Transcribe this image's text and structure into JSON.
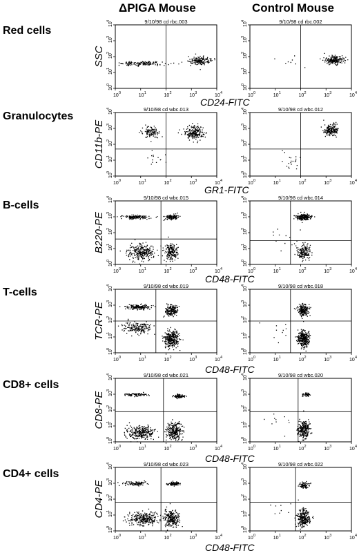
{
  "columns": [
    "ΔPIGA Mouse",
    "Control Mouse"
  ],
  "panels": [
    {
      "row_label": "Red cells",
      "ylabel": "SSC",
      "xlabel": "CD24-FITC",
      "plots": [
        {
          "file": "9/10/98 cd rbc.003",
          "quad_x": 2.0,
          "quad_y": null,
          "clusters": [
            [
              0.9,
              1.6,
              0.75,
              0.12,
              140
            ],
            [
              3.3,
              1.75,
              0.35,
              0.22,
              170
            ],
            [
              2.3,
              1.65,
              0.1,
              0.1,
              2
            ]
          ]
        },
        {
          "file": "9/10/98 cd rbc.002",
          "quad_x": 2.0,
          "quad_y": null,
          "clusters": [
            [
              3.3,
              1.8,
              0.3,
              0.22,
              190
            ],
            [
              1.6,
              1.8,
              0.4,
              0.5,
              8
            ]
          ]
        }
      ]
    },
    {
      "row_label": "Granulocytes",
      "ylabel": "CD11b-PE",
      "xlabel": "GR1-FITC",
      "plots": [
        {
          "file": "9/10/98 cd wbc.013",
          "quad_x": 2.0,
          "quad_y": 1.7,
          "clusters": [
            [
              1.4,
              2.8,
              0.25,
              0.3,
              110
            ],
            [
              3.1,
              2.75,
              0.3,
              0.35,
              200
            ],
            [
              1.6,
              1.1,
              0.35,
              0.4,
              14
            ]
          ]
        },
        {
          "file": "9/10/98 cd wbc.012",
          "quad_x": 2.0,
          "quad_y": 1.7,
          "clusters": [
            [
              3.2,
              2.9,
              0.25,
              0.3,
              170
            ],
            [
              1.6,
              1.0,
              0.35,
              0.45,
              20
            ]
          ]
        }
      ]
    },
    {
      "row_label": "B-cells",
      "ylabel": "B220-PE",
      "xlabel": "CD48-FITC",
      "plots": [
        {
          "file": "9/10/98 cd wbc.015",
          "quad_x": 1.8,
          "quad_y": 1.6,
          "clusters": [
            [
              0.8,
              3.0,
              0.45,
              0.1,
              140
            ],
            [
              2.2,
              3.0,
              0.2,
              0.12,
              120
            ],
            [
              1.0,
              0.8,
              0.45,
              0.45,
              260
            ],
            [
              2.2,
              0.8,
              0.2,
              0.4,
              190
            ]
          ]
        },
        {
          "file": "9/10/98 cd wbc.014",
          "quad_x": 1.6,
          "quad_y": 1.5,
          "clusters": [
            [
              2.1,
              3.0,
              0.25,
              0.15,
              200
            ],
            [
              2.1,
              0.8,
              0.22,
              0.4,
              170
            ],
            [
              1.3,
              1.5,
              0.6,
              0.6,
              14
            ]
          ]
        }
      ]
    },
    {
      "row_label": "T-cells",
      "ylabel": "TCR-PE",
      "xlabel": "CD48-FITC",
      "plots": [
        {
          "file": "9/10/98 cd wbc.019",
          "quad_x": 1.6,
          "quad_y": 2.0,
          "clusters": [
            [
              0.9,
              2.9,
              0.4,
              0.12,
              150
            ],
            [
              0.9,
              1.6,
              0.5,
              0.3,
              180
            ],
            [
              2.2,
              2.7,
              0.2,
              0.3,
              190
            ],
            [
              2.2,
              0.9,
              0.25,
              0.45,
              280
            ]
          ]
        },
        {
          "file": "9/10/98 cd wbc.018",
          "quad_x": 1.6,
          "quad_y": 2.0,
          "clusters": [
            [
              2.1,
              2.7,
              0.18,
              0.3,
              200
            ],
            [
              2.1,
              0.9,
              0.2,
              0.4,
              290
            ],
            [
              1.2,
              1.5,
              0.6,
              0.7,
              10
            ]
          ]
        }
      ]
    },
    {
      "row_label": "CD8+ cells",
      "ylabel": "CD8-PE",
      "xlabel": "CD48-FITC",
      "plots": [
        {
          "file": "9/10/98 cd wbc.021",
          "quad_x": 1.9,
          "quad_y": 1.9,
          "clusters": [
            [
              0.8,
              3.0,
              0.4,
              0.1,
              80
            ],
            [
              2.5,
              2.9,
              0.2,
              0.1,
              80
            ],
            [
              1.0,
              0.6,
              0.5,
              0.35,
              280
            ],
            [
              2.3,
              0.7,
              0.25,
              0.45,
              250
            ]
          ]
        },
        {
          "file": "9/10/98 cd wbc.020",
          "quad_x": 1.9,
          "quad_y": 1.9,
          "clusters": [
            [
              2.2,
              3.0,
              0.15,
              0.1,
              50
            ],
            [
              2.1,
              0.8,
              0.2,
              0.45,
              240
            ],
            [
              1.3,
              1.4,
              0.6,
              0.6,
              12
            ]
          ]
        }
      ]
    },
    {
      "row_label": "CD4+ cells",
      "ylabel": "CD4-PE",
      "xlabel": "CD48-FITC",
      "plots": [
        {
          "file": "9/10/98 cd wbc.023",
          "quad_x": 1.8,
          "quad_y": 1.8,
          "clusters": [
            [
              0.8,
              3.0,
              0.4,
              0.1,
              90
            ],
            [
              2.3,
              3.0,
              0.2,
              0.1,
              90
            ],
            [
              1.1,
              0.8,
              0.5,
              0.35,
              280
            ],
            [
              2.2,
              0.8,
              0.25,
              0.45,
              240
            ]
          ]
        },
        {
          "file": "9/10/98 cd wbc.022",
          "quad_x": 1.8,
          "quad_y": 1.8,
          "clusters": [
            [
              2.1,
              2.9,
              0.15,
              0.2,
              80
            ],
            [
              2.1,
              0.8,
              0.2,
              0.45,
              260
            ],
            [
              1.3,
              1.6,
              0.6,
              0.6,
              10
            ]
          ]
        }
      ]
    }
  ],
  "chart_data": {
    "type": "scatter",
    "title": "",
    "xlim": [
      0,
      4
    ],
    "ylim": [
      0,
      4
    ],
    "x_scale": "log (10^0 to 10^4)",
    "y_scale": "log (10^0 to 10^4)",
    "tick_labels": [
      "10",
      "10",
      "10",
      "10",
      "10"
    ],
    "tick_exponents": [
      "0",
      "1",
      "2",
      "3",
      "4"
    ],
    "grid": false,
    "legend": "none"
  }
}
